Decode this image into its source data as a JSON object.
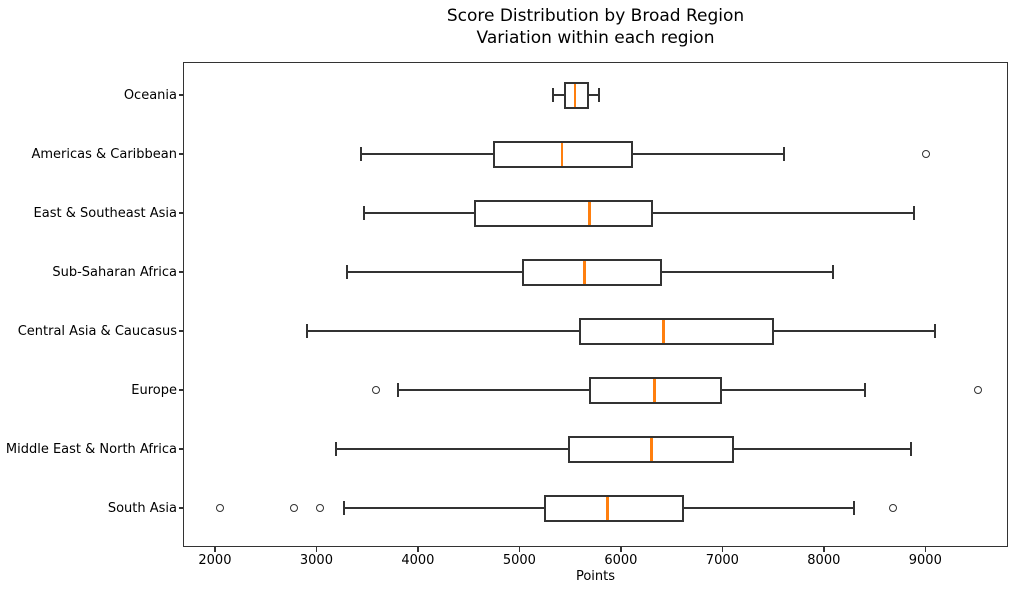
{
  "chart_data": {
    "type": "boxplot",
    "orientation": "horizontal",
    "title": "Score Distribution by Broad Region",
    "subtitle": "Variation within each region",
    "xlabel": "Points",
    "xlim": [
      1700,
      9800
    ],
    "xticks": [
      2000,
      3000,
      4000,
      5000,
      6000,
      7000,
      8000,
      9000
    ],
    "grid": false,
    "legend": "none",
    "colors": {
      "median": "#ff7f0e",
      "box_line": "#333333",
      "text": "#000000",
      "background": "#ffffff"
    },
    "categories": [
      "Oceania",
      "Americas & Caribbean",
      "East & Southeast Asia",
      "Sub-Saharan Africa",
      "Central Asia & Caucasus",
      "Europe",
      "Middle East & North Africa",
      "South Asia"
    ],
    "series": [
      {
        "name": "Oceania",
        "whisker_low": 5330,
        "q1": 5440,
        "median": 5550,
        "q3": 5690,
        "whisker_high": 5780,
        "outliers": []
      },
      {
        "name": "Americas & Caribbean",
        "whisker_low": 3440,
        "q1": 4740,
        "median": 5420,
        "q3": 6120,
        "whisker_high": 7610,
        "outliers": [
          9010
        ]
      },
      {
        "name": "East & Southeast Asia",
        "whisker_low": 3470,
        "q1": 4550,
        "median": 5690,
        "q3": 6320,
        "whisker_high": 8890,
        "outliers": []
      },
      {
        "name": "Sub-Saharan Africa",
        "whisker_low": 3300,
        "q1": 5030,
        "median": 5640,
        "q3": 6410,
        "whisker_high": 8090,
        "outliers": []
      },
      {
        "name": "Central Asia & Caucasus",
        "whisker_low": 2910,
        "q1": 5590,
        "median": 6420,
        "q3": 7510,
        "whisker_high": 9100,
        "outliers": []
      },
      {
        "name": "Europe",
        "whisker_low": 3800,
        "q1": 5690,
        "median": 6330,
        "q3": 7000,
        "whisker_high": 8410,
        "outliers": [
          3590,
          9520
        ]
      },
      {
        "name": "Middle East & North Africa",
        "whisker_low": 3190,
        "q1": 5480,
        "median": 6300,
        "q3": 7110,
        "whisker_high": 8860,
        "outliers": []
      },
      {
        "name": "South Asia",
        "whisker_low": 3270,
        "q1": 5240,
        "median": 5870,
        "q3": 6620,
        "whisker_high": 8300,
        "outliers": [
          2050,
          2780,
          3040,
          8690
        ]
      }
    ]
  }
}
